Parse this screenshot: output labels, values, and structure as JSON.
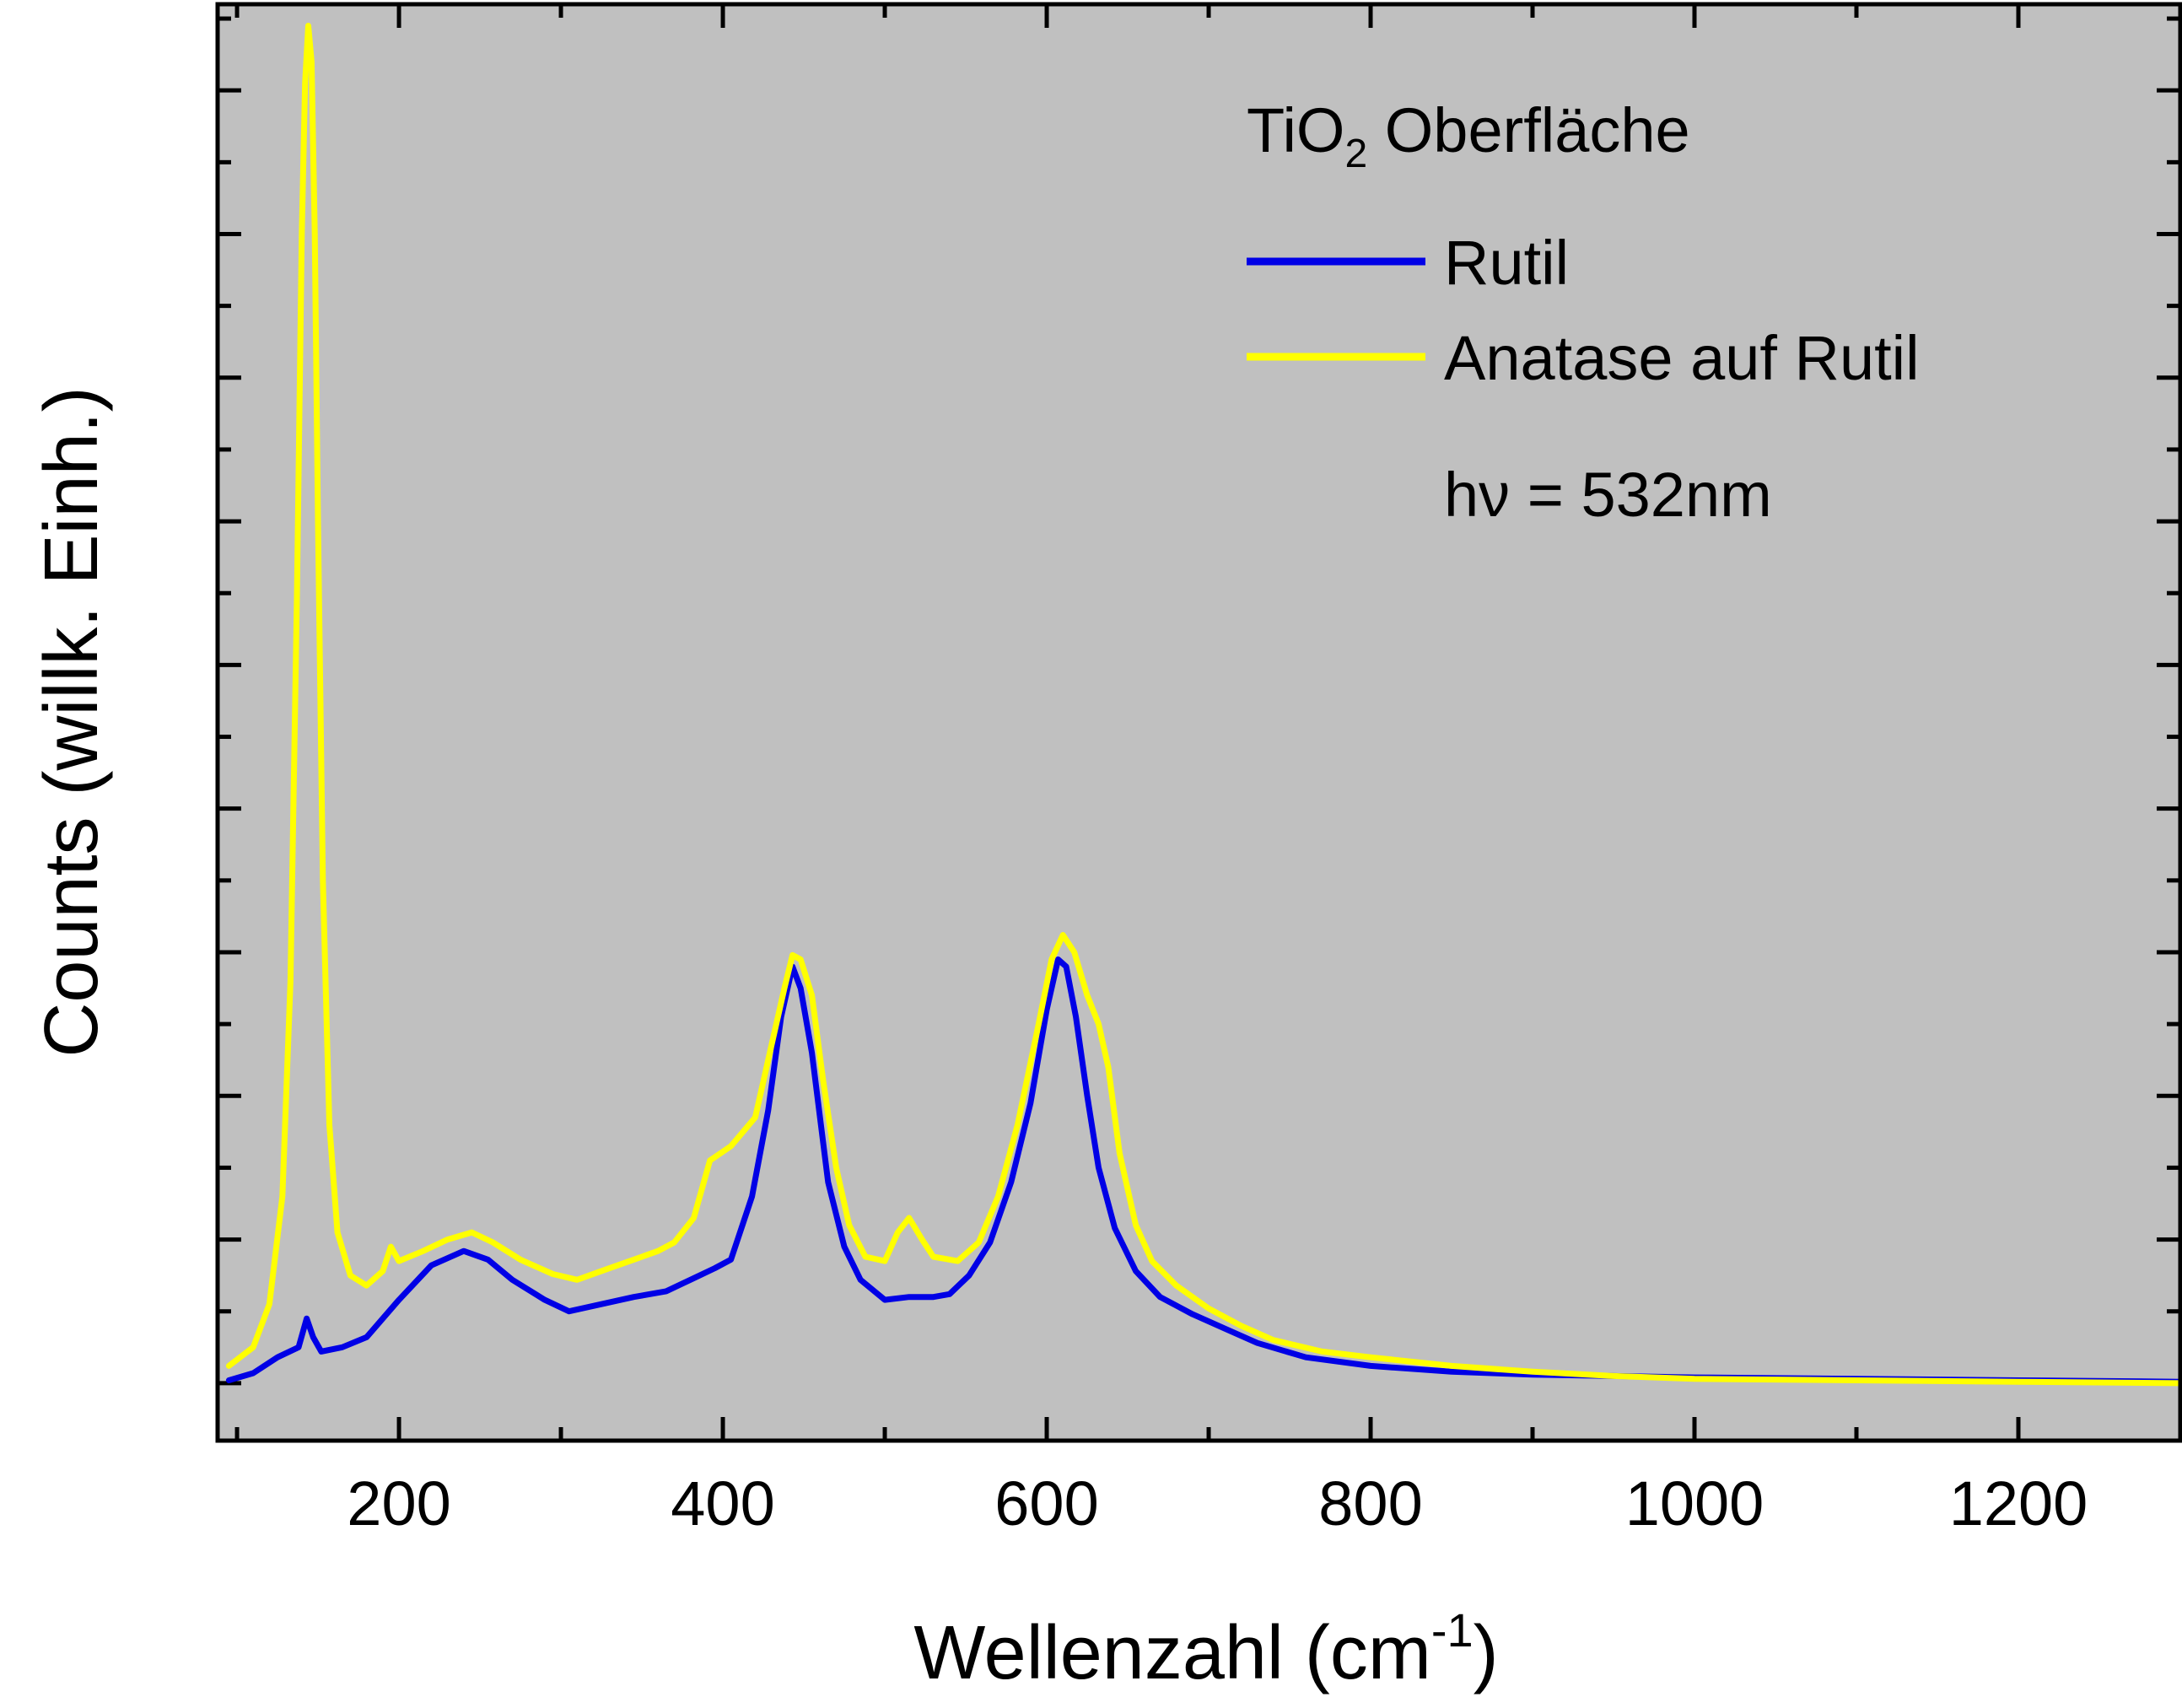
{
  "chart_data": {
    "type": "line",
    "title": "",
    "xlabel": "Wellenzahl (cm",
    "xlabel_sup": "-1",
    "xlabel_end": ")",
    "ylabel": "Counts (willk. Einh.)",
    "xlim": [
      88,
      1300
    ],
    "ylim": [
      -0.4,
      9.6
    ],
    "xticks": [
      200,
      400,
      600,
      800,
      1000,
      1200
    ],
    "xtick_labels": [
      "200",
      "400",
      "600",
      "800",
      "1000",
      "1200"
    ],
    "x_minor_step": 100,
    "y_major_step": 1,
    "ytick_labels_shown": false,
    "background_color": "#c0c0c0",
    "legend": {
      "location": "top-right",
      "title_main": "TiO",
      "title_sub": "2",
      "title_end": " Oberfläche",
      "note": "hν = 532nm"
    },
    "series": [
      {
        "name": "Rutil",
        "color": "#0000e6",
        "points": [
          [
            95,
            0.02
          ],
          [
            110,
            0.07
          ],
          [
            125,
            0.18
          ],
          [
            138,
            0.25
          ],
          [
            143,
            0.45
          ],
          [
            147,
            0.32
          ],
          [
            152,
            0.22
          ],
          [
            165,
            0.25
          ],
          [
            180,
            0.32
          ],
          [
            200,
            0.58
          ],
          [
            220,
            0.82
          ],
          [
            240,
            0.92
          ],
          [
            255,
            0.86
          ],
          [
            270,
            0.72
          ],
          [
            290,
            0.58
          ],
          [
            305,
            0.5
          ],
          [
            325,
            0.55
          ],
          [
            345,
            0.6
          ],
          [
            365,
            0.64
          ],
          [
            380,
            0.72
          ],
          [
            395,
            0.8
          ],
          [
            405,
            0.86
          ],
          [
            418,
            1.3
          ],
          [
            428,
            1.9
          ],
          [
            436,
            2.55
          ],
          [
            443,
            2.9
          ],
          [
            448,
            2.75
          ],
          [
            455,
            2.3
          ],
          [
            465,
            1.4
          ],
          [
            475,
            0.95
          ],
          [
            485,
            0.72
          ],
          [
            500,
            0.58
          ],
          [
            515,
            0.6
          ],
          [
            530,
            0.6
          ],
          [
            540,
            0.62
          ],
          [
            552,
            0.75
          ],
          [
            565,
            0.98
          ],
          [
            578,
            1.4
          ],
          [
            590,
            1.95
          ],
          [
            600,
            2.6
          ],
          [
            607,
            2.95
          ],
          [
            612,
            2.9
          ],
          [
            618,
            2.55
          ],
          [
            625,
            2.0
          ],
          [
            632,
            1.5
          ],
          [
            642,
            1.08
          ],
          [
            655,
            0.78
          ],
          [
            670,
            0.6
          ],
          [
            690,
            0.48
          ],
          [
            710,
            0.38
          ],
          [
            730,
            0.28
          ],
          [
            760,
            0.18
          ],
          [
            800,
            0.12
          ],
          [
            850,
            0.08
          ],
          [
            900,
            0.06
          ],
          [
            950,
            0.05
          ],
          [
            1000,
            0.04
          ],
          [
            1100,
            0.03
          ],
          [
            1200,
            0.02
          ],
          [
            1300,
            0.01
          ]
        ]
      },
      {
        "name": "Anatase auf Rutil",
        "color": "#ffff00",
        "points": [
          [
            95,
            0.12
          ],
          [
            110,
            0.25
          ],
          [
            120,
            0.55
          ],
          [
            128,
            1.3
          ],
          [
            133,
            2.8
          ],
          [
            137,
            5.5
          ],
          [
            140,
            8.0
          ],
          [
            142,
            9.05
          ],
          [
            144,
            9.45
          ],
          [
            146,
            9.2
          ],
          [
            148,
            8.0
          ],
          [
            150,
            6.0
          ],
          [
            153,
            3.5
          ],
          [
            157,
            1.8
          ],
          [
            162,
            1.05
          ],
          [
            170,
            0.75
          ],
          [
            180,
            0.68
          ],
          [
            190,
            0.78
          ],
          [
            195,
            0.95
          ],
          [
            200,
            0.85
          ],
          [
            215,
            0.92
          ],
          [
            230,
            1.0
          ],
          [
            245,
            1.05
          ],
          [
            258,
            0.98
          ],
          [
            275,
            0.86
          ],
          [
            295,
            0.76
          ],
          [
            310,
            0.72
          ],
          [
            330,
            0.8
          ],
          [
            345,
            0.86
          ],
          [
            360,
            0.92
          ],
          [
            370,
            0.98
          ],
          [
            382,
            1.15
          ],
          [
            392,
            1.55
          ],
          [
            405,
            1.65
          ],
          [
            420,
            1.85
          ],
          [
            430,
            2.35
          ],
          [
            438,
            2.75
          ],
          [
            443,
            2.98
          ],
          [
            448,
            2.95
          ],
          [
            455,
            2.7
          ],
          [
            462,
            2.1
          ],
          [
            470,
            1.5
          ],
          [
            478,
            1.1
          ],
          [
            488,
            0.88
          ],
          [
            500,
            0.85
          ],
          [
            508,
            1.05
          ],
          [
            515,
            1.15
          ],
          [
            523,
            1.0
          ],
          [
            530,
            0.88
          ],
          [
            545,
            0.85
          ],
          [
            558,
            0.98
          ],
          [
            570,
            1.3
          ],
          [
            582,
            1.8
          ],
          [
            595,
            2.5
          ],
          [
            603,
            2.95
          ],
          [
            610,
            3.12
          ],
          [
            617,
            3.0
          ],
          [
            625,
            2.7
          ],
          [
            632,
            2.5
          ],
          [
            638,
            2.2
          ],
          [
            645,
            1.6
          ],
          [
            655,
            1.1
          ],
          [
            665,
            0.85
          ],
          [
            680,
            0.68
          ],
          [
            700,
            0.52
          ],
          [
            720,
            0.4
          ],
          [
            740,
            0.3
          ],
          [
            770,
            0.22
          ],
          [
            800,
            0.18
          ],
          [
            850,
            0.12
          ],
          [
            900,
            0.08
          ],
          [
            950,
            0.05
          ],
          [
            1000,
            0.03
          ],
          [
            1100,
            0.02
          ],
          [
            1200,
            0.01
          ],
          [
            1300,
            0.0
          ]
        ]
      }
    ]
  }
}
